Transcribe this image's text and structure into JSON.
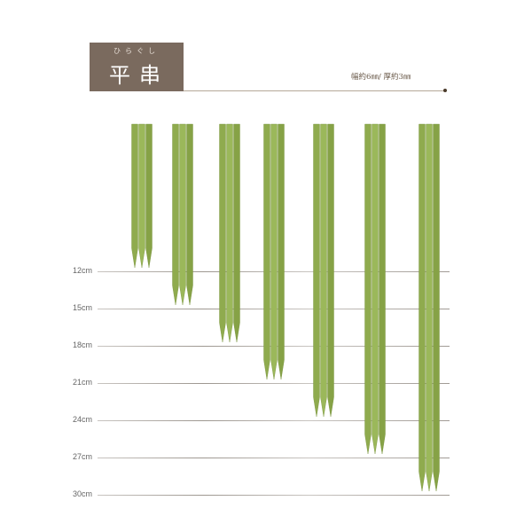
{
  "header": {
    "ruby": "ひらぐし",
    "title": "平串",
    "spec": "幅約6㎜/ 厚約3㎜",
    "title_bg": "#7a6a5e"
  },
  "sizes": [
    {
      "label": "12cm",
      "length_cm": 12
    },
    {
      "label": "15cm",
      "length_cm": 15
    },
    {
      "label": "18cm",
      "length_cm": 18
    },
    {
      "label": "21cm",
      "length_cm": 21
    },
    {
      "label": "24cm",
      "length_cm": 24
    },
    {
      "label": "27cm",
      "length_cm": 27
    },
    {
      "label": "30cm",
      "length_cm": 30
    }
  ],
  "skewer_color": "#8fab4e"
}
